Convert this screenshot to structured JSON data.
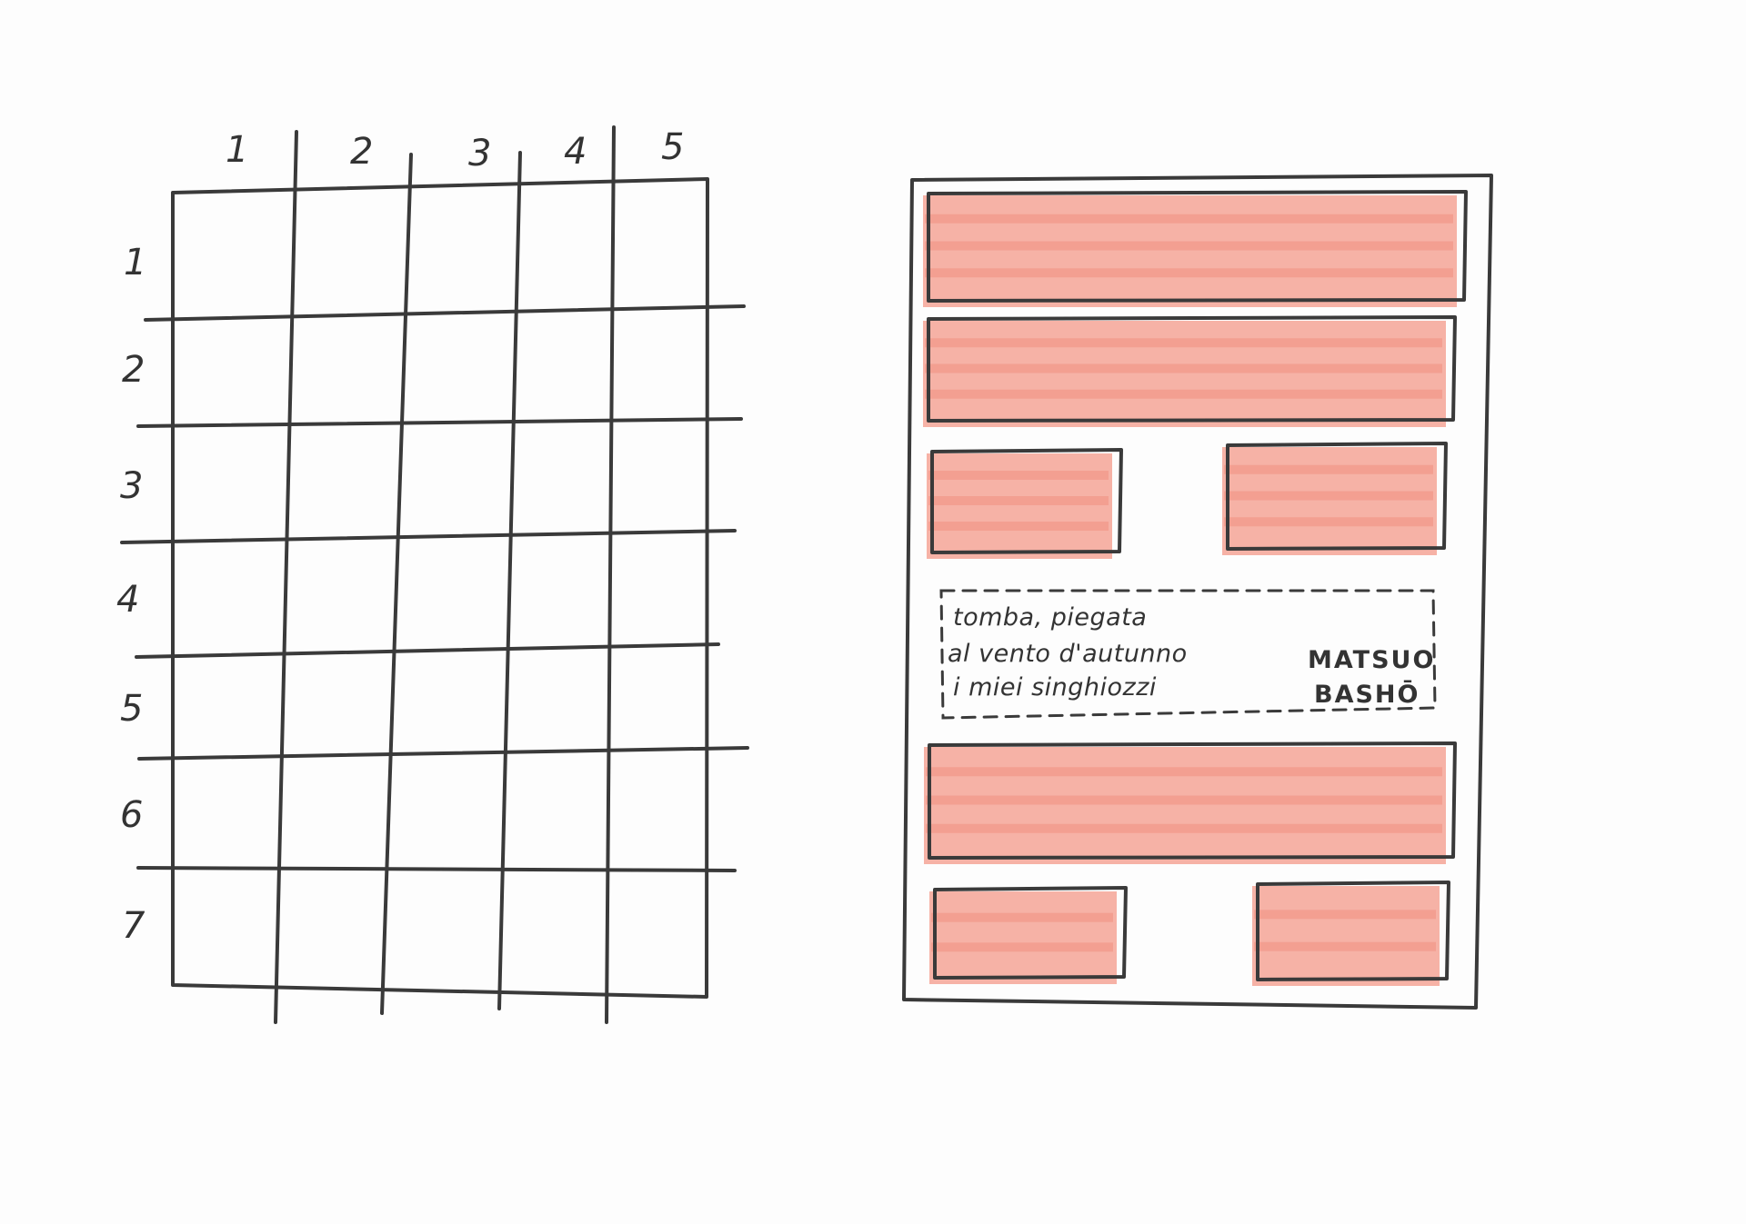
{
  "grid": {
    "column_labels": [
      "1",
      "2",
      "3",
      "4",
      "5"
    ],
    "row_labels": [
      "1",
      "2",
      "3",
      "4",
      "5",
      "6",
      "7"
    ]
  },
  "layout_sketch": {
    "highlight_color": "#f4a597",
    "highlight_stripe_color": "#f08f7f",
    "haiku": {
      "lines": [
        "tomba, piegata",
        "al vento d'autunno",
        "i miei singhiozzi"
      ],
      "author_lines": [
        "MATSUO",
        "BASHŌ"
      ]
    }
  }
}
